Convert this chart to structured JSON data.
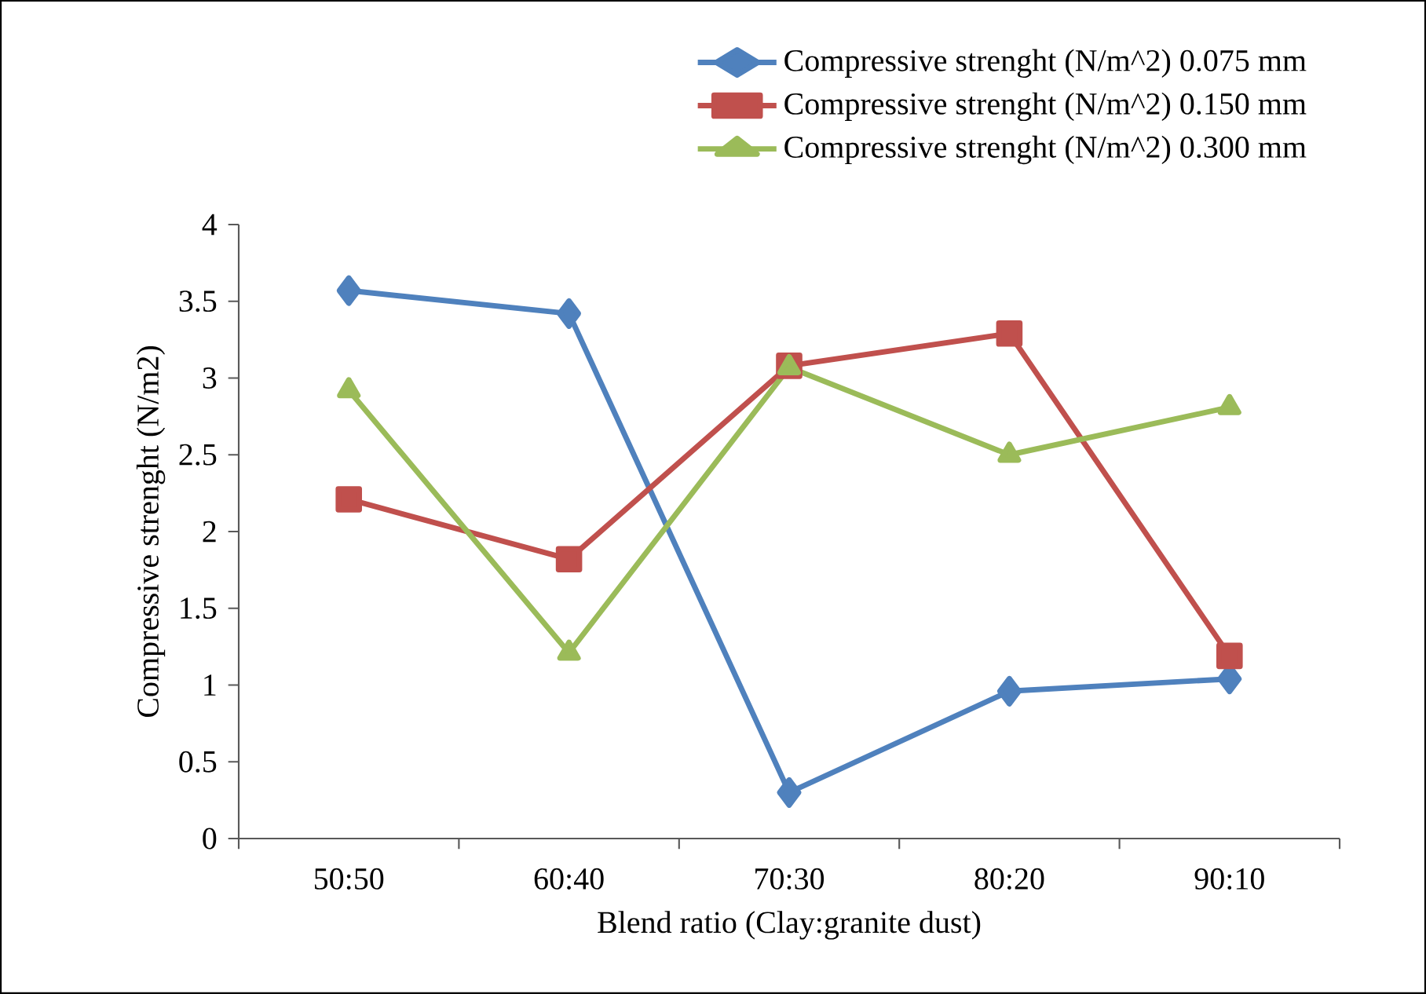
{
  "chart_data": {
    "type": "line",
    "xlabel": "Blend ratio  (Clay:granite dust)",
    "ylabel": "Compressive strenght (N/m2)",
    "categories": [
      "50:50",
      "60:40",
      "70:30",
      "80:20",
      "90:10"
    ],
    "series": [
      {
        "name": "Compressive strenght (N/m^2) 0.075 mm",
        "color": "#4f81bd",
        "marker": "diamond",
        "values": [
          3.57,
          3.42,
          0.3,
          0.96,
          1.04
        ]
      },
      {
        "name": "Compressive strenght (N/m^2) 0.150 mm",
        "color": "#c0504d",
        "marker": "square",
        "values": [
          2.21,
          1.82,
          3.08,
          3.29,
          1.19
        ]
      },
      {
        "name": "Compressive strenght (N/m^2) 0.300 mm",
        "color": "#9bbb59",
        "marker": "triangle",
        "values": [
          2.92,
          1.21,
          3.07,
          2.5,
          2.81
        ]
      }
    ],
    "ylim": [
      0,
      4
    ],
    "yticks": [
      0,
      0.5,
      1,
      1.5,
      2,
      2.5,
      3,
      3.5,
      4
    ],
    "grid": false,
    "legend": "top right",
    "line_style": "solid"
  }
}
